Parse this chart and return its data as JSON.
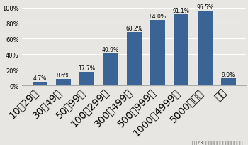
{
  "categories": [
    "10〜29人",
    "30〜49人",
    "50〜99人",
    "100〜299人",
    "300〜499人",
    "500〜999人",
    "1000〜4999人",
    "5000人以上",
    "全体"
  ],
  "values": [
    4.7,
    8.6,
    17.7,
    40.9,
    68.2,
    84.0,
    91.1,
    95.5,
    9.0
  ],
  "labels": [
    "4.7%",
    "8.6%",
    "17.7%",
    "40.9%",
    "68.2%",
    "84.0%",
    "91.1%",
    "95.5%",
    "9.0%"
  ],
  "bar_color": "#3a6496",
  "ylim": [
    0,
    100
  ],
  "yticks": [
    0,
    20,
    40,
    60,
    80,
    100
  ],
  "ytick_labels": [
    "0%",
    "20%",
    "40%",
    "60%",
    "80%",
    "100%"
  ],
  "footnote": "平戰23年労働災害防止対策等重点調査",
  "background_color": "#e8e6e2",
  "grid_color": "#ffffff",
  "spine_color": "#aaaaaa",
  "label_fontsize": 5.5,
  "tick_fontsize": 6.0,
  "footnote_fontsize": 4.8,
  "bar_width": 0.62
}
